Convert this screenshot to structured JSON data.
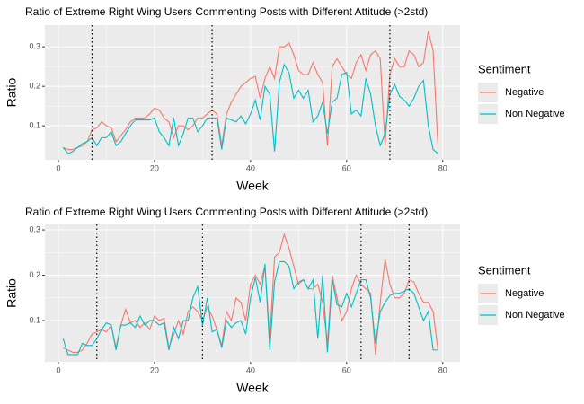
{
  "chart_data": [
    {
      "type": "line",
      "title": "Ratio of Extreme Right Wing Users Commenting Posts with Different Attitude  (>2std)",
      "x_label": "Week",
      "y_label": "Ratio",
      "legend_title": "Sentiment",
      "legend": "right",
      "grid": true,
      "xlim": [
        -2.8,
        83.6
      ],
      "xticks": [
        0,
        20,
        40,
        60,
        80
      ],
      "ylim": [
        0.014,
        0.355
      ],
      "yticks": [
        0.1,
        0.2,
        0.3
      ],
      "vlines": [
        7,
        32,
        69
      ],
      "x": [
        1,
        2,
        3,
        4,
        5,
        6,
        7,
        8,
        9,
        10,
        11,
        12,
        13,
        14,
        15,
        16,
        17,
        18,
        19,
        20,
        21,
        22,
        23,
        24,
        25,
        26,
        27,
        28,
        29,
        30,
        31,
        32,
        33,
        34,
        35,
        36,
        37,
        38,
        39,
        40,
        41,
        42,
        43,
        44,
        45,
        46,
        47,
        48,
        49,
        50,
        51,
        52,
        53,
        54,
        55,
        56,
        57,
        58,
        59,
        60,
        61,
        62,
        63,
        64,
        65,
        66,
        67,
        68,
        69,
        70,
        71,
        72,
        73,
        74,
        75,
        76,
        77,
        78,
        79
      ],
      "series": [
        {
          "name": "Negative",
          "color": "#F8766D",
          "values": [
            0.045,
            0.04,
            0.04,
            0.045,
            0.05,
            0.06,
            0.09,
            0.095,
            0.11,
            0.1,
            0.095,
            0.06,
            0.075,
            0.09,
            0.11,
            0.12,
            0.12,
            0.12,
            0.13,
            0.145,
            0.14,
            0.12,
            0.11,
            0.07,
            0.1,
            0.1,
            0.09,
            0.1,
            0.12,
            0.12,
            0.13,
            0.14,
            0.13,
            0.05,
            0.13,
            0.16,
            0.18,
            0.2,
            0.21,
            0.22,
            0.225,
            0.17,
            0.22,
            0.25,
            0.22,
            0.3,
            0.3,
            0.31,
            0.28,
            0.24,
            0.23,
            0.23,
            0.26,
            0.23,
            0.21,
            0.05,
            0.25,
            0.27,
            0.25,
            0.23,
            0.22,
            0.26,
            0.28,
            0.24,
            0.28,
            0.29,
            0.27,
            0.05,
            0.23,
            0.27,
            0.25,
            0.25,
            0.29,
            0.28,
            0.25,
            0.26,
            0.34,
            0.29,
            0.05
          ]
        },
        {
          "name": "Non Negative",
          "color": "#00BFC4",
          "values": [
            0.045,
            0.03,
            0.035,
            0.045,
            0.055,
            0.06,
            0.07,
            0.05,
            0.07,
            0.07,
            0.085,
            0.05,
            0.06,
            0.08,
            0.1,
            0.115,
            0.115,
            0.115,
            0.115,
            0.12,
            0.085,
            0.07,
            0.05,
            0.12,
            0.05,
            0.08,
            0.12,
            0.12,
            0.085,
            0.1,
            0.12,
            0.12,
            0.12,
            0.04,
            0.12,
            0.115,
            0.11,
            0.125,
            0.105,
            0.13,
            0.165,
            0.115,
            0.2,
            0.18,
            0.035,
            0.21,
            0.255,
            0.235,
            0.17,
            0.19,
            0.17,
            0.19,
            0.11,
            0.125,
            0.16,
            0.08,
            0.16,
            0.17,
            0.23,
            0.235,
            0.13,
            0.14,
            0.125,
            0.22,
            0.18,
            0.1,
            0.05,
            0.08,
            0.18,
            0.205,
            0.175,
            0.165,
            0.15,
            0.17,
            0.2,
            0.215,
            0.1,
            0.04,
            0.03
          ]
        }
      ]
    },
    {
      "type": "line",
      "title": "Ratio of Extreme Right Wing Users Commenting Posts with Different Attitude (>2std)",
      "x_label": "Week",
      "y_label": "Ratio",
      "legend_title": "Sentiment",
      "legend": "right",
      "grid": true,
      "xlim": [
        -2.8,
        83.6
      ],
      "xticks": [
        0,
        20,
        40,
        60,
        80
      ],
      "ylim": [
        0.009,
        0.312
      ],
      "yticks": [
        0.1,
        0.2,
        0.3
      ],
      "vlines": [
        8,
        30,
        63,
        73
      ],
      "x": [
        1,
        2,
        3,
        4,
        5,
        6,
        7,
        8,
        9,
        10,
        11,
        12,
        13,
        14,
        15,
        16,
        17,
        18,
        19,
        20,
        21,
        22,
        23,
        24,
        25,
        26,
        27,
        28,
        29,
        30,
        31,
        32,
        33,
        34,
        35,
        36,
        37,
        38,
        39,
        40,
        41,
        42,
        43,
        44,
        45,
        46,
        47,
        48,
        49,
        50,
        51,
        52,
        53,
        54,
        55,
        56,
        57,
        58,
        59,
        60,
        61,
        62,
        63,
        64,
        65,
        66,
        67,
        68,
        69,
        70,
        71,
        72,
        73,
        74,
        75,
        76,
        77,
        78,
        79
      ],
      "series": [
        {
          "name": "Negative",
          "color": "#F8766D",
          "values": [
            0.04,
            0.035,
            0.03,
            0.03,
            0.035,
            0.05,
            0.07,
            0.075,
            0.08,
            0.075,
            0.09,
            0.04,
            0.09,
            0.125,
            0.095,
            0.1,
            0.085,
            0.095,
            0.08,
            0.11,
            0.1,
            0.105,
            0.04,
            0.07,
            0.1,
            0.07,
            0.12,
            0.13,
            0.12,
            0.1,
            0.13,
            0.11,
            0.08,
            0.045,
            0.12,
            0.1,
            0.15,
            0.14,
            0.1,
            0.18,
            0.2,
            0.18,
            0.22,
            0.06,
            0.24,
            0.25,
            0.29,
            0.26,
            0.22,
            0.18,
            0.19,
            0.17,
            0.17,
            0.18,
            0.14,
            0.05,
            0.2,
            0.15,
            0.1,
            0.12,
            0.17,
            0.2,
            0.18,
            0.17,
            0.16,
            0.025,
            0.14,
            0.235,
            0.18,
            0.15,
            0.15,
            0.16,
            0.19,
            0.185,
            0.16,
            0.14,
            0.14,
            0.12,
            0.035
          ]
        },
        {
          "name": "Non Negative",
          "color": "#00BFC4",
          "values": [
            0.06,
            0.025,
            0.025,
            0.025,
            0.05,
            0.045,
            0.045,
            0.06,
            0.08,
            0.095,
            0.09,
            0.035,
            0.09,
            0.09,
            0.095,
            0.085,
            0.11,
            0.09,
            0.1,
            0.1,
            0.09,
            0.095,
            0.035,
            0.085,
            0.06,
            0.1,
            0.1,
            0.15,
            0.175,
            0.09,
            0.15,
            0.075,
            0.08,
            0.04,
            0.1,
            0.085,
            0.095,
            0.1,
            0.07,
            0.15,
            0.195,
            0.14,
            0.225,
            0.035,
            0.185,
            0.23,
            0.23,
            0.22,
            0.17,
            0.185,
            0.19,
            0.17,
            0.19,
            0.06,
            0.2,
            0.03,
            0.19,
            0.135,
            0.13,
            0.16,
            0.13,
            0.16,
            0.19,
            0.19,
            0.15,
            0.05,
            0.12,
            0.14,
            0.155,
            0.16,
            0.16,
            0.165,
            0.17,
            0.16,
            0.13,
            0.1,
            0.12,
            0.035,
            0.035
          ]
        }
      ]
    }
  ]
}
